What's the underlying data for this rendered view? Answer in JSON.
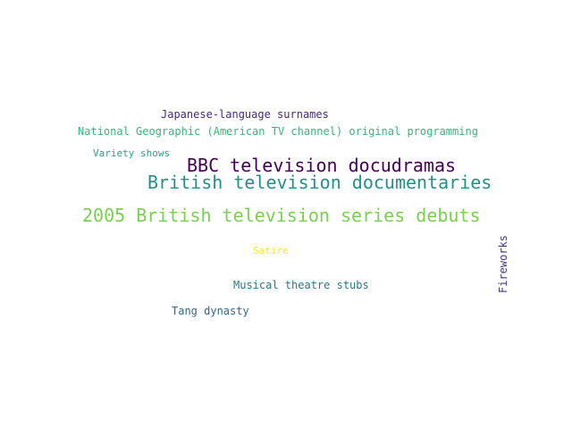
{
  "words": [
    {
      "text": "Japanese-language surnames",
      "color": "#482878"
    },
    {
      "text": "National Geographic (American TV channel) original programming",
      "color": "#35b779"
    },
    {
      "text": "Variety shows",
      "color": "#22a884"
    },
    {
      "text": "BBC television docudramas",
      "color": "#440154"
    },
    {
      "text": "British television documentaries",
      "color": "#21918c"
    },
    {
      "text": "2005 British television series debuts",
      "color": "#7ad151"
    },
    {
      "text": "Satire",
      "color": "#fde725"
    },
    {
      "text": "Musical theatre stubs",
      "color": "#2a788e"
    },
    {
      "text": "Tang dynasty",
      "color": "#31688e"
    },
    {
      "text": "Fireworks",
      "color": "#443983"
    }
  ]
}
